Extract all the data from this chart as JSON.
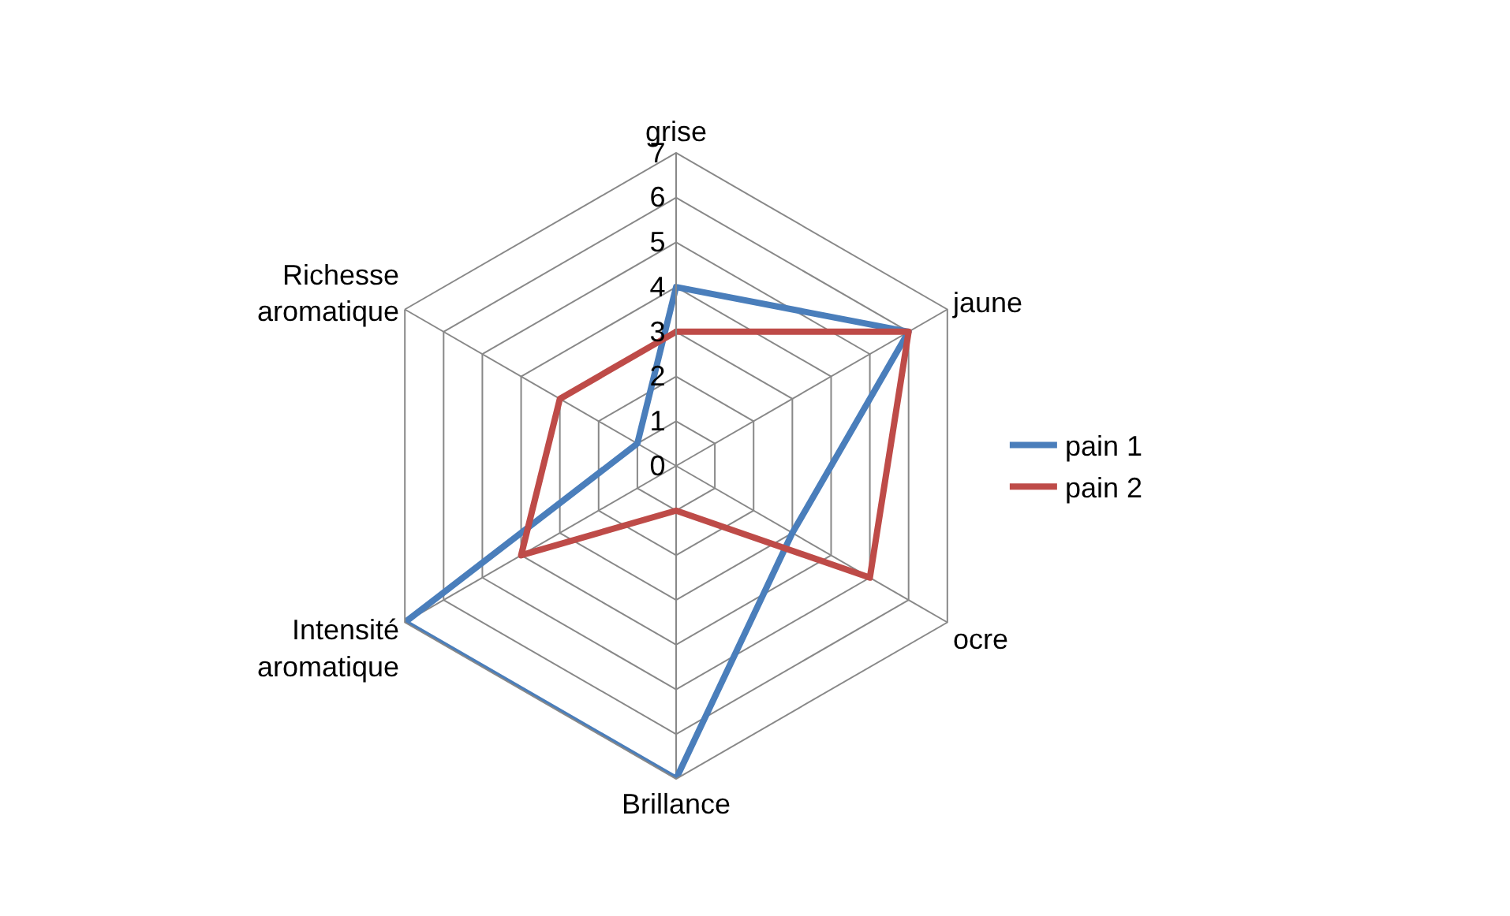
{
  "chart_data": {
    "type": "radar",
    "categories": [
      "grise",
      "jaune",
      "ocre",
      "Brillance",
      "Intensité aromatique",
      "Richesse aromatique"
    ],
    "series": [
      {
        "name": "pain 1",
        "color": "#4a7ebb",
        "values": [
          4,
          6,
          3,
          7,
          7,
          1
        ]
      },
      {
        "name": "pain 2",
        "color": "#be4b48",
        "values": [
          3,
          6,
          5,
          1,
          4,
          3
        ]
      }
    ],
    "ylim": [
      0,
      7
    ],
    "yticks": [
      0,
      1,
      2,
      3,
      4,
      5,
      6,
      7
    ],
    "grid": true,
    "legend": "right",
    "marker": "none"
  }
}
